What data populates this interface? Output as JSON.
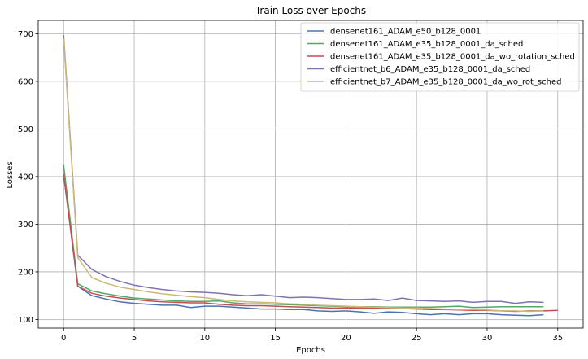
{
  "chart_data": {
    "type": "line",
    "title": "Train Loss over Epochs",
    "xlabel": "Epochs",
    "ylabel": "Losses",
    "xlim": [
      -1.8,
      36.8
    ],
    "ylim": [
      82,
      728
    ],
    "xticks": [
      "0",
      "5",
      "10",
      "15",
      "20",
      "25",
      "30",
      "35"
    ],
    "yticks": [
      "100",
      "200",
      "300",
      "400",
      "500",
      "600",
      "700"
    ],
    "grid": true,
    "legend_position": "top-right",
    "series": [
      {
        "name": "densenet161_ADAM_e50_b128_0001",
        "color": "#4c72b0",
        "x": [
          0,
          1,
          2,
          3,
          4,
          5,
          6,
          7,
          8,
          9,
          10,
          11,
          12,
          13,
          14,
          15,
          16,
          17,
          18,
          19,
          20,
          21,
          22,
          23,
          24,
          25,
          26,
          27,
          28,
          29,
          30,
          31,
          32,
          33,
          34
        ],
        "y": [
          405,
          170,
          150,
          143,
          137,
          134,
          132,
          130,
          130,
          125,
          128,
          128,
          126,
          124,
          122,
          122,
          121,
          121,
          118,
          117,
          118,
          116,
          113,
          116,
          115,
          112,
          110,
          112,
          110,
          112,
          112,
          110,
          109,
          108,
          110
        ]
      },
      {
        "name": "densenet161_ADAM_e35_b128_0001_da_sched",
        "color": "#55a868",
        "x": [
          0,
          1,
          2,
          3,
          4,
          5,
          6,
          7,
          8,
          9,
          10,
          11,
          12,
          13,
          14,
          15,
          16,
          17,
          18,
          19,
          20,
          21,
          22,
          23,
          24,
          25,
          26,
          27,
          28,
          29,
          30,
          31,
          32,
          33,
          34
        ],
        "y": [
          425,
          175,
          160,
          154,
          149,
          145,
          143,
          141,
          139,
          138,
          138,
          139,
          135,
          133,
          133,
          132,
          131,
          130,
          129,
          128,
          127,
          127,
          127,
          126,
          126,
          126,
          126,
          127,
          128,
          125,
          126,
          127,
          127,
          127,
          127
        ]
      },
      {
        "name": "densenet161_ADAM_e35_b128_0001_da_wo_rotation_sched",
        "color": "#c44e52",
        "x": [
          0,
          1,
          2,
          3,
          4,
          5,
          6,
          7,
          8,
          9,
          10,
          11,
          12,
          13,
          14,
          15,
          16,
          17,
          18,
          19,
          20,
          21,
          22,
          23,
          24,
          25,
          26,
          27,
          28,
          29,
          30,
          31,
          32,
          33,
          34,
          35
        ],
        "y": [
          405,
          170,
          155,
          149,
          145,
          142,
          139,
          137,
          136,
          135,
          135,
          132,
          130,
          129,
          129,
          128,
          127,
          126,
          125,
          124,
          124,
          124,
          124,
          123,
          123,
          122,
          121,
          121,
          120,
          119,
          119,
          118,
          117,
          118,
          118,
          119
        ]
      },
      {
        "name": "efficientnet_b6_ADAM_e35_b128_0001_da_sched",
        "color": "#8172b2",
        "x": [
          0,
          1,
          2,
          3,
          4,
          5,
          6,
          7,
          8,
          9,
          10,
          11,
          12,
          13,
          14,
          15,
          16,
          17,
          18,
          19,
          20,
          21,
          22,
          23,
          24,
          25,
          26,
          27,
          28,
          29,
          30,
          31,
          32,
          33,
          34
        ],
        "y": [
          697,
          235,
          205,
          190,
          180,
          172,
          167,
          163,
          160,
          158,
          157,
          155,
          152,
          150,
          152,
          149,
          146,
          147,
          146,
          144,
          142,
          142,
          143,
          140,
          145,
          140,
          139,
          138,
          139,
          136,
          138,
          138,
          134,
          137,
          136
        ]
      },
      {
        "name": "efficientnet_b7_ADAM_e35_b128_0001_da_wo_rot_sched",
        "color": "#ccb974",
        "x": [
          0,
          1,
          2,
          3,
          4,
          5,
          6,
          7,
          8,
          9,
          10,
          11,
          12,
          13,
          14,
          15,
          16,
          17,
          18,
          19,
          20,
          21,
          22,
          23,
          24,
          25,
          26,
          27,
          28,
          29,
          30,
          31,
          32,
          33,
          34
        ],
        "y": [
          690,
          230,
          188,
          176,
          168,
          163,
          158,
          154,
          151,
          148,
          146,
          142,
          139,
          137,
          136,
          135,
          133,
          132,
          130,
          129,
          128,
          127,
          126,
          125,
          124,
          124,
          123,
          122,
          121,
          121,
          120,
          118,
          118,
          117,
          118
        ]
      }
    ]
  }
}
